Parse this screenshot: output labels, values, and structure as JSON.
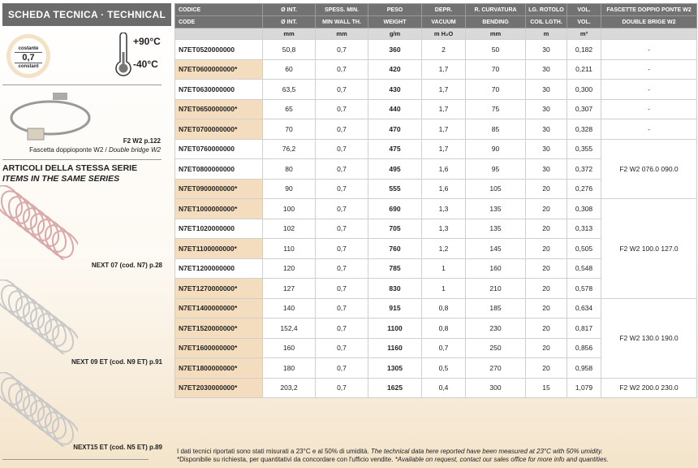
{
  "sidebar": {
    "title": "SCHEDA TECNICA · TECHNICAL DATA",
    "badge": {
      "top": "costante",
      "value": "0,7",
      "bottom": "constant"
    },
    "temp_max": "+90°C",
    "temp_min": "-40°C",
    "clamp": {
      "code": "F2 W2 p.122",
      "desc_it": "Fascetta doppioponte W2 / ",
      "desc_en": "Double bridge W2"
    },
    "series_title_it": "ARTICOLI DELLA STESSA SERIE",
    "series_title_en": "ITEMS IN THE SAME SERIES",
    "series": [
      {
        "label": "NEXT 07 (cod. N7) p.28"
      },
      {
        "label": "NEXT 09 ET (cod. N9 ET) p.91"
      },
      {
        "label": "NEXT15 ET (cod. N5 ET) p.89"
      }
    ]
  },
  "table": {
    "header_it": [
      "CODICE",
      "Ø INT.",
      "SPESS. MIN.",
      "PESO",
      "DEPR.",
      "R. CURVATURA",
      "LG. ROTOLO",
      "VOL.",
      "FASCETTE DOPPIO PONTE W2"
    ],
    "header_en": [
      "CODE",
      "Ø INT.",
      "MIN WALL TH.",
      "WEIGHT",
      "VACUUM",
      "BENDING",
      "COIL LGTH.",
      "VOL.",
      "DOUBLE BRIGE W2"
    ],
    "units": [
      "",
      "mm",
      "mm",
      "g/m",
      "m H₂O",
      "mm",
      "m",
      "m³",
      ""
    ],
    "rows": [
      {
        "code": "N7ET0520000000",
        "star": false,
        "v": [
          "50,8",
          "0,7",
          "360",
          "2",
          "50",
          "30",
          "0,182"
        ]
      },
      {
        "code": "N7ET0600000000*",
        "star": true,
        "v": [
          "60",
          "0,7",
          "420",
          "1,7",
          "70",
          "30",
          "0,211"
        ]
      },
      {
        "code": "N7ET0630000000",
        "star": false,
        "v": [
          "63,5",
          "0,7",
          "430",
          "1,7",
          "70",
          "30",
          "0,300"
        ]
      },
      {
        "code": "N7ET0650000000*",
        "star": true,
        "v": [
          "65",
          "0,7",
          "440",
          "1,7",
          "75",
          "30",
          "0,307"
        ]
      },
      {
        "code": "N7ET0700000000*",
        "star": true,
        "v": [
          "70",
          "0,7",
          "470",
          "1,7",
          "85",
          "30",
          "0,328"
        ]
      },
      {
        "code": "N7ET0760000000",
        "star": false,
        "v": [
          "76,2",
          "0,7",
          "475",
          "1,7",
          "90",
          "30",
          "0,355"
        ]
      },
      {
        "code": "N7ET0800000000",
        "star": false,
        "v": [
          "80",
          "0,7",
          "495",
          "1,6",
          "95",
          "30",
          "0,372"
        ]
      },
      {
        "code": "N7ET0900000000*",
        "star": true,
        "v": [
          "90",
          "0,7",
          "555",
          "1,6",
          "105",
          "20",
          "0,276"
        ]
      },
      {
        "code": "N7ET1000000000*",
        "star": true,
        "v": [
          "100",
          "0,7",
          "690",
          "1,3",
          "135",
          "20",
          "0,308"
        ]
      },
      {
        "code": "N7ET1020000000",
        "star": false,
        "v": [
          "102",
          "0,7",
          "705",
          "1,3",
          "135",
          "20",
          "0,313"
        ]
      },
      {
        "code": "N7ET1100000000*",
        "star": true,
        "v": [
          "110",
          "0,7",
          "760",
          "1,2",
          "145",
          "20",
          "0,505"
        ]
      },
      {
        "code": "N7ET1200000000",
        "star": false,
        "v": [
          "120",
          "0,7",
          "785",
          "1",
          "160",
          "20",
          "0,548"
        ]
      },
      {
        "code": "N7ET1270000000*",
        "star": true,
        "v": [
          "127",
          "0,7",
          "830",
          "1",
          "210",
          "20",
          "0,578"
        ]
      },
      {
        "code": "N7ET1400000000*",
        "star": true,
        "v": [
          "140",
          "0,7",
          "915",
          "0,8",
          "185",
          "20",
          "0,634"
        ]
      },
      {
        "code": "N7ET1520000000*",
        "star": true,
        "v": [
          "152,4",
          "0,7",
          "1100",
          "0,8",
          "230",
          "20",
          "0,817"
        ]
      },
      {
        "code": "N7ET1600000000*",
        "star": true,
        "v": [
          "160",
          "0,7",
          "1160",
          "0,7",
          "250",
          "20",
          "0,856"
        ]
      },
      {
        "code": "N7ET1800000000*",
        "star": true,
        "v": [
          "180",
          "0,7",
          "1305",
          "0,5",
          "270",
          "20",
          "0,958"
        ]
      },
      {
        "code": "N7ET2030000000*",
        "star": true,
        "v": [
          "203,2",
          "0,7",
          "1625",
          "0,4",
          "300",
          "15",
          "1,079"
        ]
      }
    ],
    "fascette": [
      {
        "label": "-",
        "span": 1
      },
      {
        "label": "-",
        "span": 1
      },
      {
        "label": "-",
        "span": 1
      },
      {
        "label": "-",
        "span": 1
      },
      {
        "label": "-",
        "span": 1
      },
      {
        "label": "F2 W2 076.0 090.0",
        "span": 3
      },
      {
        "label": "F2 W2 100.0 127.0",
        "span": 5
      },
      {
        "label": "F2 W2 130.0 190.0",
        "span": 4
      },
      {
        "label": "F2 W2 200.0 230.0",
        "span": 1
      }
    ]
  },
  "footer": {
    "line1_it": "I dati tecnici riportati sono stati misurati a 23°C e al 50% di umidità. ",
    "line1_en": "The technical data here reported have been measured at 23°C with 50% umidity.",
    "line2_it": "*Disponibile su richiesta, per quantitativi da concordare con l'ufficio vendite. ",
    "line2_en": "*Available on request, contact our sales office for more info and quantities."
  },
  "colors": {
    "header": "#727272",
    "star_row": "#f4ddbe",
    "badge_ring": "#f3e2c6"
  }
}
